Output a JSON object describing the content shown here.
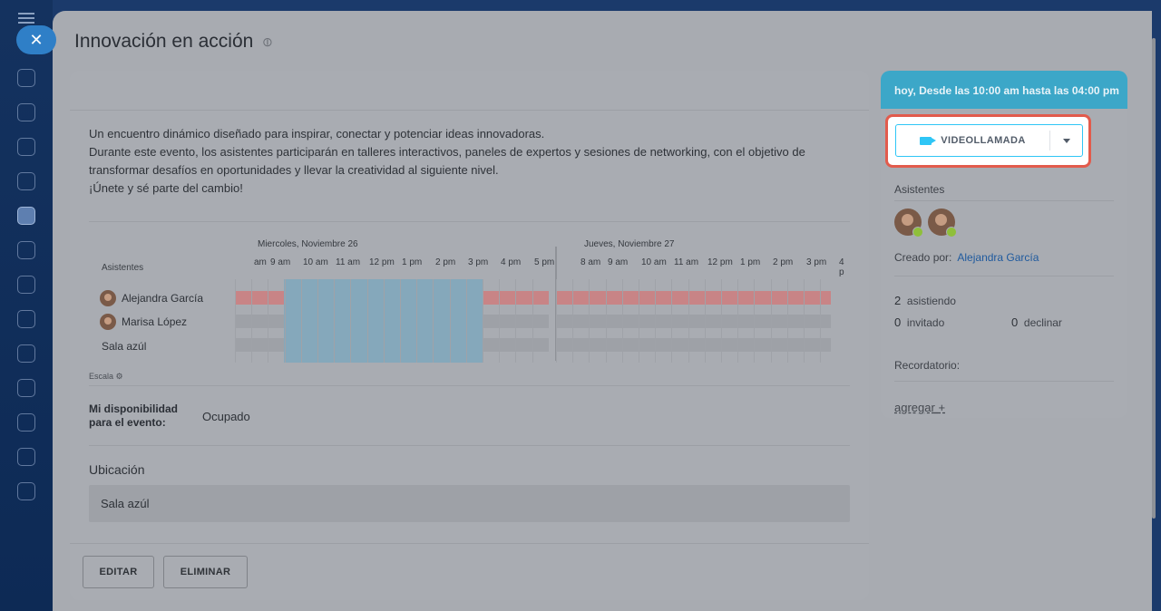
{
  "event": {
    "title": "Innovación en acción",
    "description": [
      "Un encuentro dinámico diseñado para inspirar, conectar y potenciar ideas innovadoras.",
      "Durante este evento, los asistentes participarán en talleres interactivos, paneles de expertos y sesiones de networking, con el objetivo de",
      "transformar desafíos en oportunidades y llevar la creatividad al siguiente nivel.",
      "¡Únete y sé parte del cambio!"
    ]
  },
  "scheduler": {
    "days": [
      "Miercoles, Noviembre 26",
      "Jueves, Noviembre 27"
    ],
    "day1_hours": [
      "am",
      "9 am",
      "10 am",
      "11 am",
      "12 pm",
      "1 pm",
      "2 pm",
      "3 pm",
      "4 pm",
      "5 pm"
    ],
    "day2_hours": [
      "8 am",
      "9 am",
      "10 am",
      "11 am",
      "12 pm",
      "1 pm",
      "2 pm",
      "3 pm",
      "4 p"
    ],
    "attendees_title": "Asistentes",
    "attendees": [
      "Alejandra García",
      "Marisa López"
    ],
    "room": "Sala azúl",
    "scale_label": "Escala"
  },
  "availability": {
    "label_line1": "Mi disponibilidad",
    "label_line2": "para el evento:",
    "value": "Ocupado"
  },
  "location": {
    "title": "Ubicación",
    "value": "Sala azúl"
  },
  "actions": {
    "edit": "EDITAR",
    "delete": "ELIMINAR"
  },
  "side": {
    "time_header": "hoy, Desde las 10:00 am hasta las 04:00 pm",
    "video_call": "VIDEOLLAMADA",
    "attendees_title": "Asistentes",
    "created_by_label": "Creado por:",
    "created_by": "Alejandra García",
    "attending_count": "2",
    "attending_label": "asistiendo",
    "invited_count": "0",
    "invited_label": "invitado",
    "declined_count": "0",
    "declined_label": "declinar",
    "reminder_label": "Recordatorio:",
    "add_link": "agregar",
    "add_plus": "+"
  },
  "icons": {
    "close": "close-icon",
    "link": "link-icon",
    "camera": "camera-icon",
    "dropdown": "chevron-down-icon",
    "settings": "gear-icon"
  },
  "colors": {
    "header_accent": "#3ca7c8",
    "video_button_border": "#2fc6f6",
    "highlight_frame": "#e25b4c",
    "busy_band": "#c88486",
    "event_block": "#85a8bb"
  }
}
